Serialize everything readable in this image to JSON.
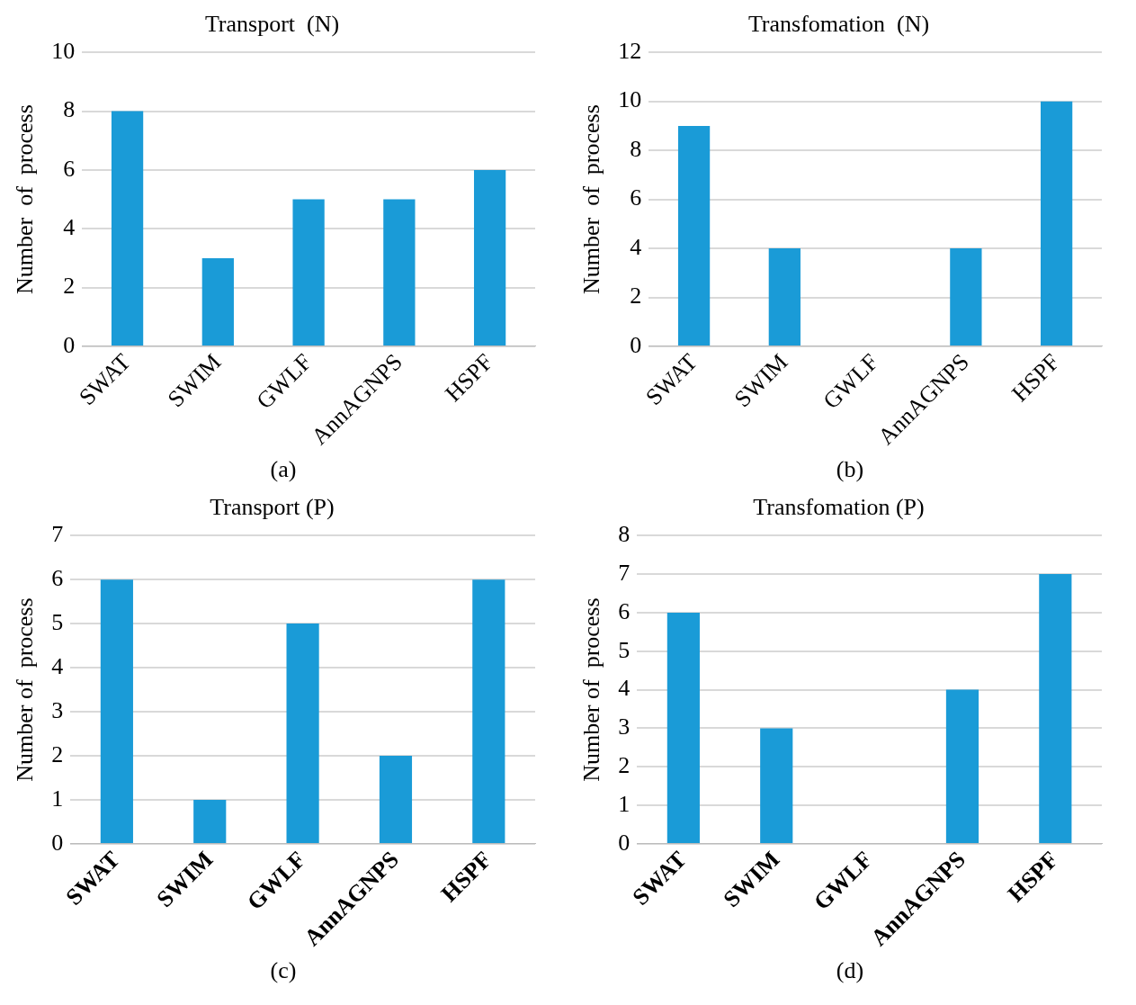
{
  "chart_data": [
    {
      "type": "bar",
      "title": "Transport  (N)",
      "ylabel": "Number  of  process",
      "categories": [
        "SWAT",
        "SWIM",
        "GWLF",
        "AnnAGNPS",
        "HSPF"
      ],
      "values": [
        8,
        3,
        5,
        5,
        6
      ],
      "color": "#1a9bd7",
      "ylim": [
        0,
        10
      ],
      "yticks": [
        0,
        2,
        4,
        6,
        8,
        10
      ],
      "grid": "y",
      "annotations": [
        "(a)"
      ]
    },
    {
      "type": "bar",
      "title": "Transfomation  (N)",
      "ylabel": "Number  of  process",
      "categories": [
        "SWAT",
        "SWIM",
        "GWLF",
        "AnnAGNPS",
        "HSPF"
      ],
      "values": [
        9,
        4,
        0,
        4,
        10
      ],
      "color": "#1a9bd7",
      "ylim": [
        0,
        12
      ],
      "yticks": [
        0,
        2,
        4,
        6,
        8,
        10,
        12
      ],
      "grid": "y",
      "annotations": [
        "(b)"
      ]
    },
    {
      "type": "bar",
      "title": "Transport (P)",
      "ylabel": "Number of  process",
      "categories": [
        "SWAT",
        "SWIM",
        "GWLF",
        "AnnAGNPS",
        "HSPF"
      ],
      "values": [
        6,
        1,
        5,
        2,
        6
      ],
      "color": "#1a9bd7",
      "ylim": [
        0,
        7
      ],
      "yticks": [
        0,
        1,
        2,
        3,
        4,
        5,
        6,
        7
      ],
      "grid": "y",
      "annotations": [
        "(c)"
      ]
    },
    {
      "type": "bar",
      "title": "Transfomation (P)",
      "ylabel": "Number of  process",
      "categories": [
        "SWAT",
        "SWIM",
        "GWLF",
        "AnnAGNPS",
        "HSPF"
      ],
      "values": [
        6,
        3,
        0,
        4,
        7
      ],
      "color": "#1a9bd7",
      "ylim": [
        0,
        8
      ],
      "yticks": [
        0,
        1,
        2,
        3,
        4,
        5,
        6,
        7,
        8
      ],
      "grid": "y",
      "annotations": [
        "(d)"
      ]
    }
  ]
}
